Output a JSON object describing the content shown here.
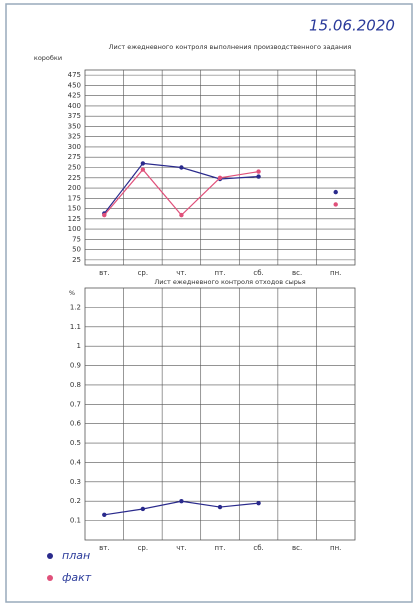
{
  "date": "15.06.2020",
  "chart_data": [
    {
      "type": "line",
      "title": "Лист ежедневного контроля выполнения производственного задания",
      "y_label": "коробки",
      "categories": [
        "вт.",
        "ср.",
        "чт.",
        "пт.",
        "сб.",
        "вс.",
        "пн."
      ],
      "series": [
        {
          "name": "план",
          "color": "#2a2a8c",
          "values": [
            138,
            260,
            250,
            222,
            228,
            null,
            190
          ]
        },
        {
          "name": "факт",
          "color": "#e0507a",
          "values": [
            134,
            245,
            134,
            225,
            240,
            null,
            160
          ]
        }
      ],
      "ylim": [
        12.5,
        487.5
      ],
      "yticks": [
        25,
        50,
        75,
        100,
        125,
        150,
        175,
        200,
        225,
        250,
        275,
        300,
        325,
        350,
        375,
        400,
        425,
        450,
        475
      ],
      "grid": true
    },
    {
      "type": "line",
      "title": "Лист ежедневного контроля отходов сырья",
      "y_label": "%",
      "categories": [
        "вт.",
        "ср.",
        "чт.",
        "пт.",
        "сб.",
        "вс.",
        "пн."
      ],
      "values": [
        0.13,
        0.16,
        0.2,
        0.17,
        0.19,
        null,
        null
      ],
      "color": "#2a2a8c",
      "ylim": [
        0,
        1.3
      ],
      "yticks": [
        0.1,
        0.2,
        0.3,
        0.4,
        0.5,
        0.6,
        0.7,
        0.8,
        0.9,
        1,
        1.1,
        1.2
      ],
      "grid": true
    }
  ]
}
